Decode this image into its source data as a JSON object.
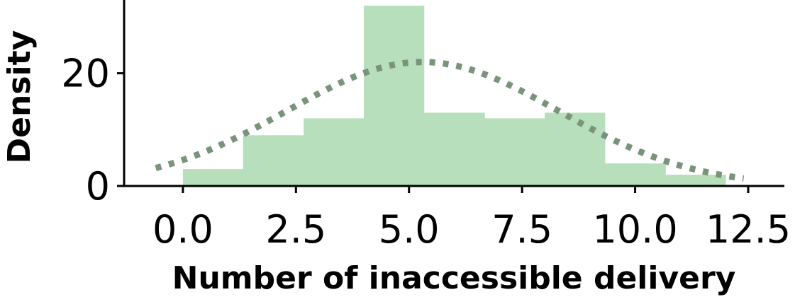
{
  "chart_data": {
    "type": "bar",
    "title": "",
    "xlabel": "Number of inaccessible delivery",
    "ylabel": "Density",
    "xlim": [
      -1.3,
      13.3
    ],
    "ylim": [
      0,
      32
    ],
    "x_ticks": [
      "0.0",
      "2.5",
      "5.0",
      "7.5",
      "10.0",
      "12.5"
    ],
    "x_tick_values": [
      0.0,
      2.5,
      5.0,
      7.5,
      10.0,
      12.5
    ],
    "y_ticks": [
      "0",
      "20"
    ],
    "y_tick_values": [
      0,
      20
    ],
    "bins": [
      {
        "x0": 0.0,
        "x1": 1.33,
        "value": 3
      },
      {
        "x0": 1.33,
        "x1": 2.67,
        "value": 9
      },
      {
        "x0": 2.67,
        "x1": 4.0,
        "value": 12
      },
      {
        "x0": 4.0,
        "x1": 5.33,
        "value": 32
      },
      {
        "x0": 5.33,
        "x1": 6.67,
        "value": 13
      },
      {
        "x0": 6.67,
        "x1": 8.0,
        "value": 12
      },
      {
        "x0": 8.0,
        "x1": 9.33,
        "value": 13
      },
      {
        "x0": 9.33,
        "x1": 10.67,
        "value": 4
      },
      {
        "x0": 10.67,
        "x1": 12.0,
        "value": 2
      }
    ],
    "density_curve": {
      "style": "dotted",
      "mean": 5.3,
      "sd": 3.0,
      "peak": 22,
      "x_range": [
        -0.6,
        12.4
      ]
    },
    "grid": false,
    "legend": "none",
    "colors": {
      "bar": "#b8dfbb",
      "curve": "#7a947c",
      "axis": "#000000"
    }
  }
}
